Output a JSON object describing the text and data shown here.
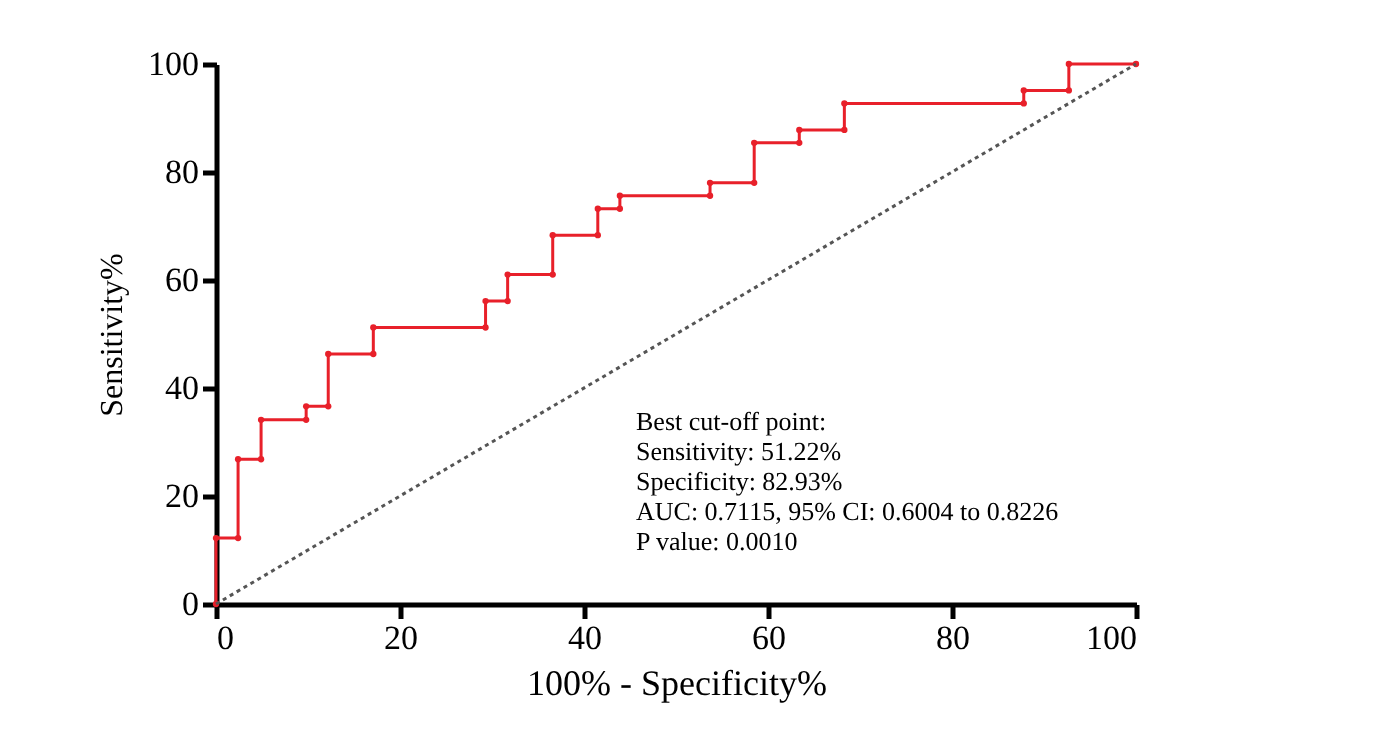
{
  "chart_data": {
    "type": "step",
    "xlabel": "100% - Specificity%",
    "ylabel": "Sensitivity%",
    "xlim": [
      0,
      100
    ],
    "ylim": [
      0,
      100
    ],
    "xticks": [
      0,
      20,
      40,
      60,
      80,
      100
    ],
    "yticks": [
      0,
      20,
      40,
      60,
      80,
      100
    ],
    "grid": false,
    "marker": "circle",
    "series": [
      {
        "color": "#e8202a",
        "x": [
          0,
          0,
          2.4,
          2.4,
          4.9,
          4.9,
          9.8,
          9.8,
          12.2,
          12.2,
          17.1,
          17.1,
          29.3,
          29.3,
          31.7,
          31.7,
          36.6,
          36.6,
          41.5,
          41.5,
          43.9,
          43.9,
          53.7,
          53.7,
          58.5,
          58.5,
          63.4,
          63.4,
          68.3,
          68.3,
          87.8,
          87.8,
          92.7,
          92.7,
          100
        ],
        "values": [
          0,
          12.2,
          12.2,
          26.8,
          26.8,
          34.1,
          34.1,
          36.6,
          36.6,
          46.3,
          46.3,
          51.2,
          51.2,
          56.1,
          56.1,
          61,
          61,
          68.3,
          68.3,
          73.2,
          73.2,
          75.6,
          75.6,
          78,
          78,
          85.4,
          85.4,
          87.8,
          87.8,
          92.7,
          92.7,
          95.1,
          95.1,
          100,
          100
        ]
      },
      {
        "type": "line",
        "color": "#555555",
        "line_style": "dotted",
        "marker": "none",
        "x": [
          0,
          100
        ],
        "values": [
          0,
          100
        ]
      }
    ],
    "annotations": [
      "Best cut-off point:",
      "Sensitivity: 51.22%",
      "Specificity: 82.93%",
      "AUC: 0.7115, 95% CI: 0.6004 to 0.8226",
      "P value: 0.0010"
    ]
  }
}
